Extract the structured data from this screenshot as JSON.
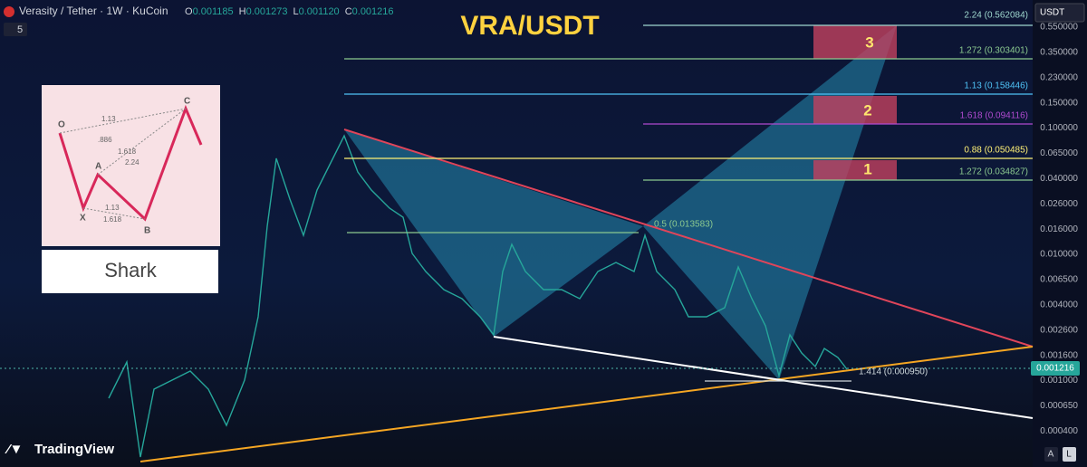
{
  "header": {
    "symbol": "Verasity / Tether · 1W · KuCoin",
    "ohlc": [
      {
        "key": "O",
        "value": "0.001185"
      },
      {
        "key": "H",
        "value": "0.001273"
      },
      {
        "key": "L",
        "value": "0.001120"
      },
      {
        "key": "C",
        "value": "0.001216"
      }
    ],
    "indicator_count": "5"
  },
  "title": "VRA/USDT",
  "currency": "USDT",
  "price_axis": [
    "0.550000",
    "0.350000",
    "0.230000",
    "0.150000",
    "0.100000",
    "0.065000",
    "0.040000",
    "0.026000",
    "0.016000",
    "0.010000",
    "0.006500",
    "0.004000",
    "0.002600",
    "0.001600",
    "0.001000",
    "0.000650",
    "0.000400"
  ],
  "current_price": "0.001216",
  "fib_levels": [
    {
      "label": "2.24 (0.562084)",
      "color": "#9fd8cf"
    },
    {
      "label": "1.272 (0.303401)",
      "color": "#8bc98f"
    },
    {
      "label": "1.13 (0.158446)",
      "color": "#4fc3f7"
    },
    {
      "label": "1.618 (0.094116)",
      "color": "#b04ad0"
    },
    {
      "label": "0.88 (0.050485)",
      "color": "#fff176"
    },
    {
      "label": "1.272 (0.034827)",
      "color": "#8bc98f"
    },
    {
      "label": "0.5 (0.013583)",
      "color": "#8bc98f"
    },
    {
      "label": "1.414 (0.000950)",
      "color": "#cfd8dc"
    }
  ],
  "targets": [
    "3",
    "2",
    "1"
  ],
  "pattern": {
    "name": "Shark",
    "points": [
      "O",
      "X",
      "A",
      "B",
      "C"
    ],
    "ratios": [
      "1.13",
      ".886",
      "1.618",
      "2.24",
      "1.13",
      "1.618"
    ]
  },
  "branding": "TradingView",
  "buttons": [
    "A",
    "L"
  ]
}
